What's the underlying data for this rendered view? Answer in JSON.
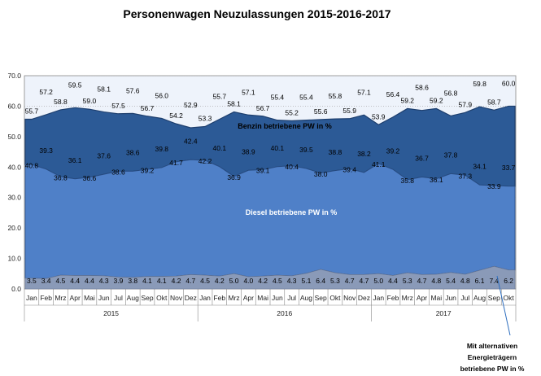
{
  "chart_data": {
    "type": "area",
    "title": "Personenwagen Neuzulassungen 2015-2016-2017",
    "ylim": [
      0,
      70
    ],
    "yticks": [
      "0.0",
      "10.0",
      "20.0",
      "30.0",
      "40.0",
      "50.0",
      "60.0",
      "70.0"
    ],
    "grid": true,
    "months": [
      "Jan",
      "Feb",
      "Mrz",
      "Apr",
      "Mai",
      "Jun",
      "Jul",
      "Aug",
      "Sep",
      "Okt",
      "Nov",
      "Dez",
      "Jan",
      "Feb",
      "Mrz",
      "Apr",
      "Mai",
      "Jun",
      "Jul",
      "Aug",
      "Sep",
      "Okt",
      "Nov",
      "Dez",
      "Jan",
      "Feb",
      "Mrz",
      "Apr",
      "Mai",
      "Jun",
      "Jul",
      "Aug",
      "Sep",
      "Okt"
    ],
    "years": [
      {
        "label": "2015",
        "start": 0,
        "end": 11
      },
      {
        "label": "2016",
        "start": 12,
        "end": 23
      },
      {
        "label": "2017",
        "start": 24,
        "end": 33
      }
    ],
    "series": [
      {
        "name": "Mit alternativen Energieträgern betriebene PW in %",
        "color": "#8a9ab8",
        "values": [
          3.5,
          3.4,
          4.5,
          4.4,
          4.4,
          4.3,
          3.9,
          3.8,
          4.1,
          4.1,
          4.2,
          4.7,
          4.5,
          4.2,
          5.0,
          4.0,
          4.2,
          4.5,
          4.3,
          5.1,
          6.4,
          5.3,
          4.7,
          4.7,
          5.0,
          4.4,
          5.3,
          4.7,
          4.8,
          5.4,
          4.8,
          6.1,
          7.4,
          6.2
        ]
      },
      {
        "name": "Diesel betriebene PW in %",
        "color": "#4f80c8",
        "values": [
          40.8,
          39.3,
          36.8,
          36.1,
          36.6,
          37.6,
          38.6,
          38.6,
          39.2,
          39.8,
          41.7,
          42.4,
          42.2,
          40.1,
          36.9,
          38.9,
          39.1,
          40.1,
          40.4,
          39.5,
          38.0,
          38.8,
          39.4,
          38.2,
          41.1,
          39.2,
          35.8,
          36.7,
          36.1,
          37.8,
          37.3,
          34.1,
          33.9,
          33.7
        ]
      },
      {
        "name": "Benzin betriebene PW in %",
        "color": "#2c5a96",
        "values": [
          55.7,
          57.2,
          58.8,
          59.5,
          59.0,
          58.1,
          57.5,
          57.6,
          56.7,
          56.0,
          54.2,
          52.9,
          53.3,
          55.7,
          58.1,
          57.1,
          56.7,
          55.4,
          55.2,
          55.4,
          55.6,
          55.8,
          55.9,
          57.1,
          53.9,
          56.4,
          59.2,
          58.6,
          59.2,
          56.8,
          57.9,
          59.8,
          58.7,
          60.0
        ]
      }
    ],
    "series_labels": {
      "benzin": "Benzin betriebene PW  in %",
      "diesel": "Diesel betriebene PW in %",
      "alt": [
        "Mit alternativen",
        "Energieträgern",
        "betriebene PW in %"
      ]
    },
    "colors": {
      "benzin": "#2c5a96",
      "benzin_top": "#d8e0ee",
      "diesel": "#4f80c8",
      "alt": "#8a9ab8",
      "grid": "#a0a0a0"
    }
  }
}
